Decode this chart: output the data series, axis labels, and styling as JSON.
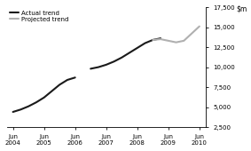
{
  "actual_segment1_x": [
    2004.5,
    2004.75,
    2005.0,
    2005.25,
    2005.5,
    2005.75,
    2006.0,
    2006.25,
    2006.5
  ],
  "actual_segment1_y": [
    4400,
    4700,
    5100,
    5600,
    6200,
    7000,
    7800,
    8400,
    8700
  ],
  "actual_segment2_x": [
    2007.0,
    2007.25,
    2007.5,
    2007.75,
    2008.0,
    2008.25,
    2008.5,
    2008.75,
    2009.0,
    2009.25
  ],
  "actual_segment2_y": [
    9800,
    10000,
    10300,
    10700,
    11200,
    11800,
    12400,
    13000,
    13400,
    13600
  ],
  "projected_x": [
    2009.0,
    2009.25,
    2009.5,
    2009.75,
    2010.0,
    2010.25,
    2010.5
  ],
  "projected_y": [
    13400,
    13500,
    13300,
    13100,
    13300,
    14200,
    15100
  ],
  "actual_color": "#1a1a1a",
  "projected_color": "#b0b0b0",
  "ylim": [
    2500,
    17500
  ],
  "yticks": [
    2500,
    5000,
    7500,
    10000,
    12500,
    15000,
    17500
  ],
  "xlim": [
    2004.3,
    2010.7
  ],
  "xtick_positions": [
    2004.5,
    2005.5,
    2006.5,
    2007.5,
    2008.5,
    2009.5,
    2010.5
  ],
  "xtick_labels": [
    "Jun\n2004",
    "Jun\n2005",
    "Jun\n2006",
    "Jun\n2007",
    "Jun\n2008",
    "Jun\n2009",
    "Jun\n2010"
  ],
  "legend_actual": "Actual trend",
  "legend_projected": "Projected trend",
  "linewidth": 1.5,
  "background_color": "#ffffff"
}
